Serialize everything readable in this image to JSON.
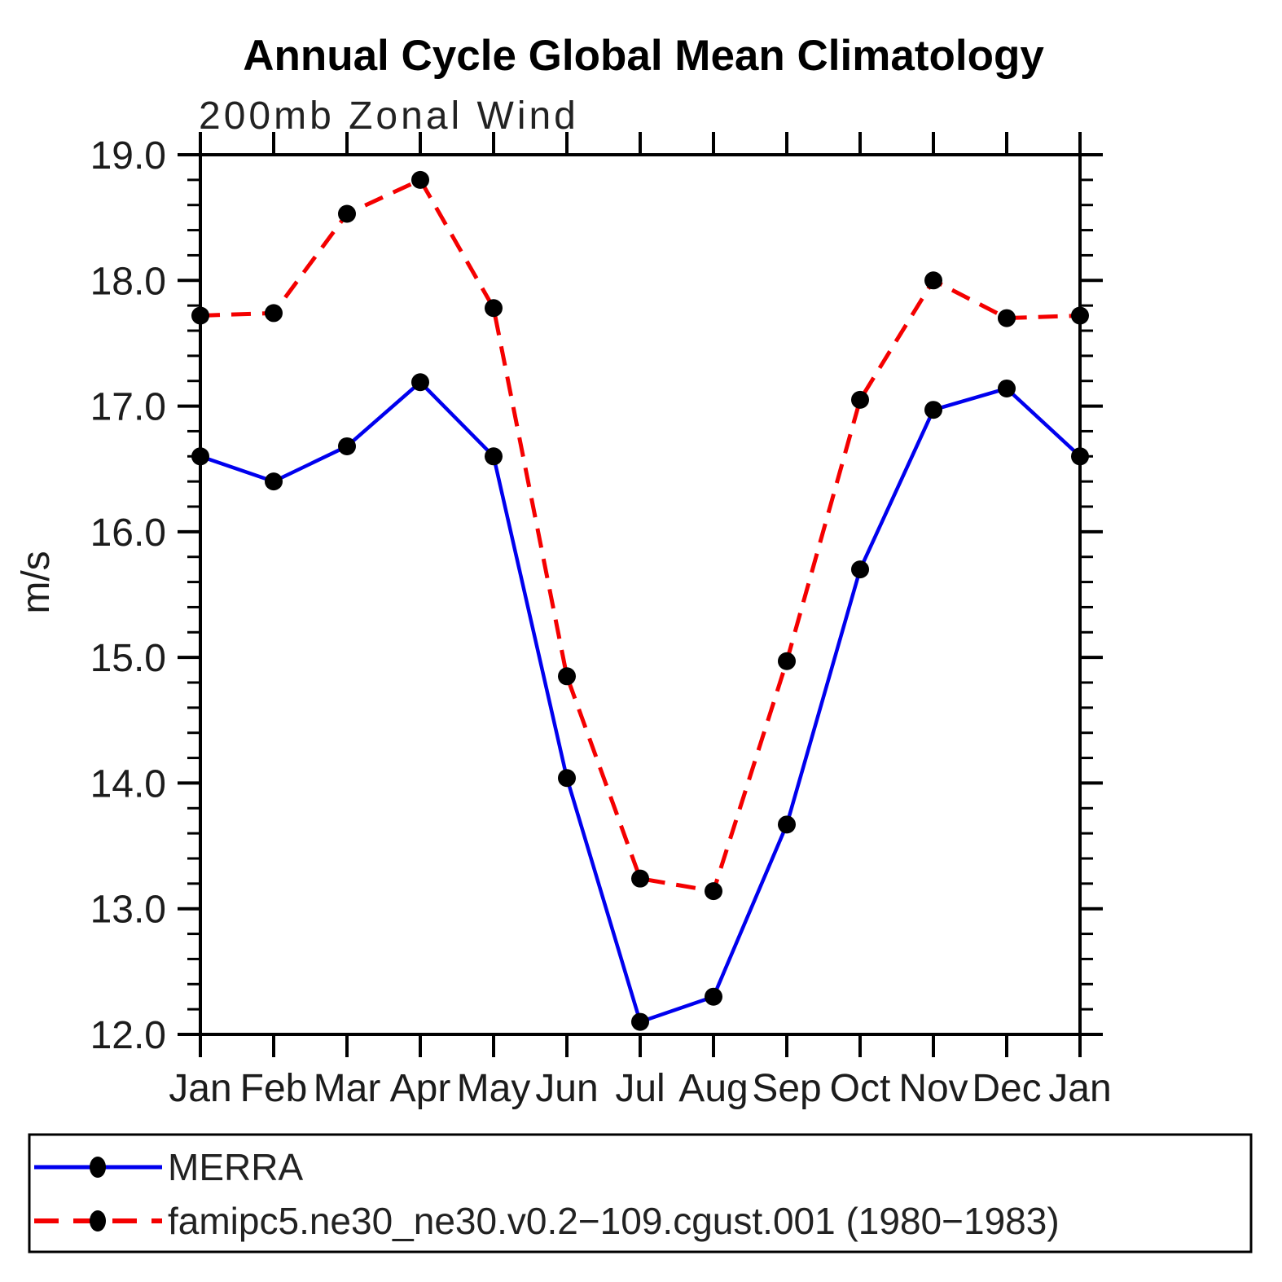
{
  "chart_data": {
    "type": "line",
    "title": "Annual Cycle Global Mean Climatology",
    "subtitle": "200mb Zonal Wind",
    "ylabel": "m/s",
    "xlabel": "",
    "categories": [
      "Jan",
      "Feb",
      "Mar",
      "Apr",
      "May",
      "Jun",
      "Jul",
      "Aug",
      "Sep",
      "Oct",
      "Nov",
      "Dec",
      "Jan"
    ],
    "ylim": [
      12.0,
      19.0
    ],
    "ytick_major_step": 1.0,
    "ytick_minor_step": 0.2,
    "ytick_labels": [
      "12.0",
      "13.0",
      "14.0",
      "15.0",
      "16.0",
      "17.0",
      "18.0",
      "19.0"
    ],
    "grid": false,
    "legend_position": "bottom-box",
    "marker": "filled-circle",
    "marker_color": "#000000",
    "axis_color": "#000000",
    "series": [
      {
        "name": "MERRA",
        "color": "#0000ee",
        "line_style": "solid",
        "values": [
          16.6,
          16.4,
          16.68,
          17.19,
          16.6,
          14.04,
          12.1,
          12.3,
          13.67,
          15.7,
          16.97,
          17.14,
          16.6
        ]
      },
      {
        "name": "famipc5.ne30_ne30.v0.2−109.cgust.001 (1980−1983)",
        "color": "#f40000",
        "line_style": "dashed",
        "values": [
          17.72,
          17.74,
          18.53,
          18.8,
          17.78,
          14.85,
          13.24,
          13.14,
          14.97,
          17.05,
          18.0,
          17.7,
          17.72
        ]
      }
    ]
  }
}
